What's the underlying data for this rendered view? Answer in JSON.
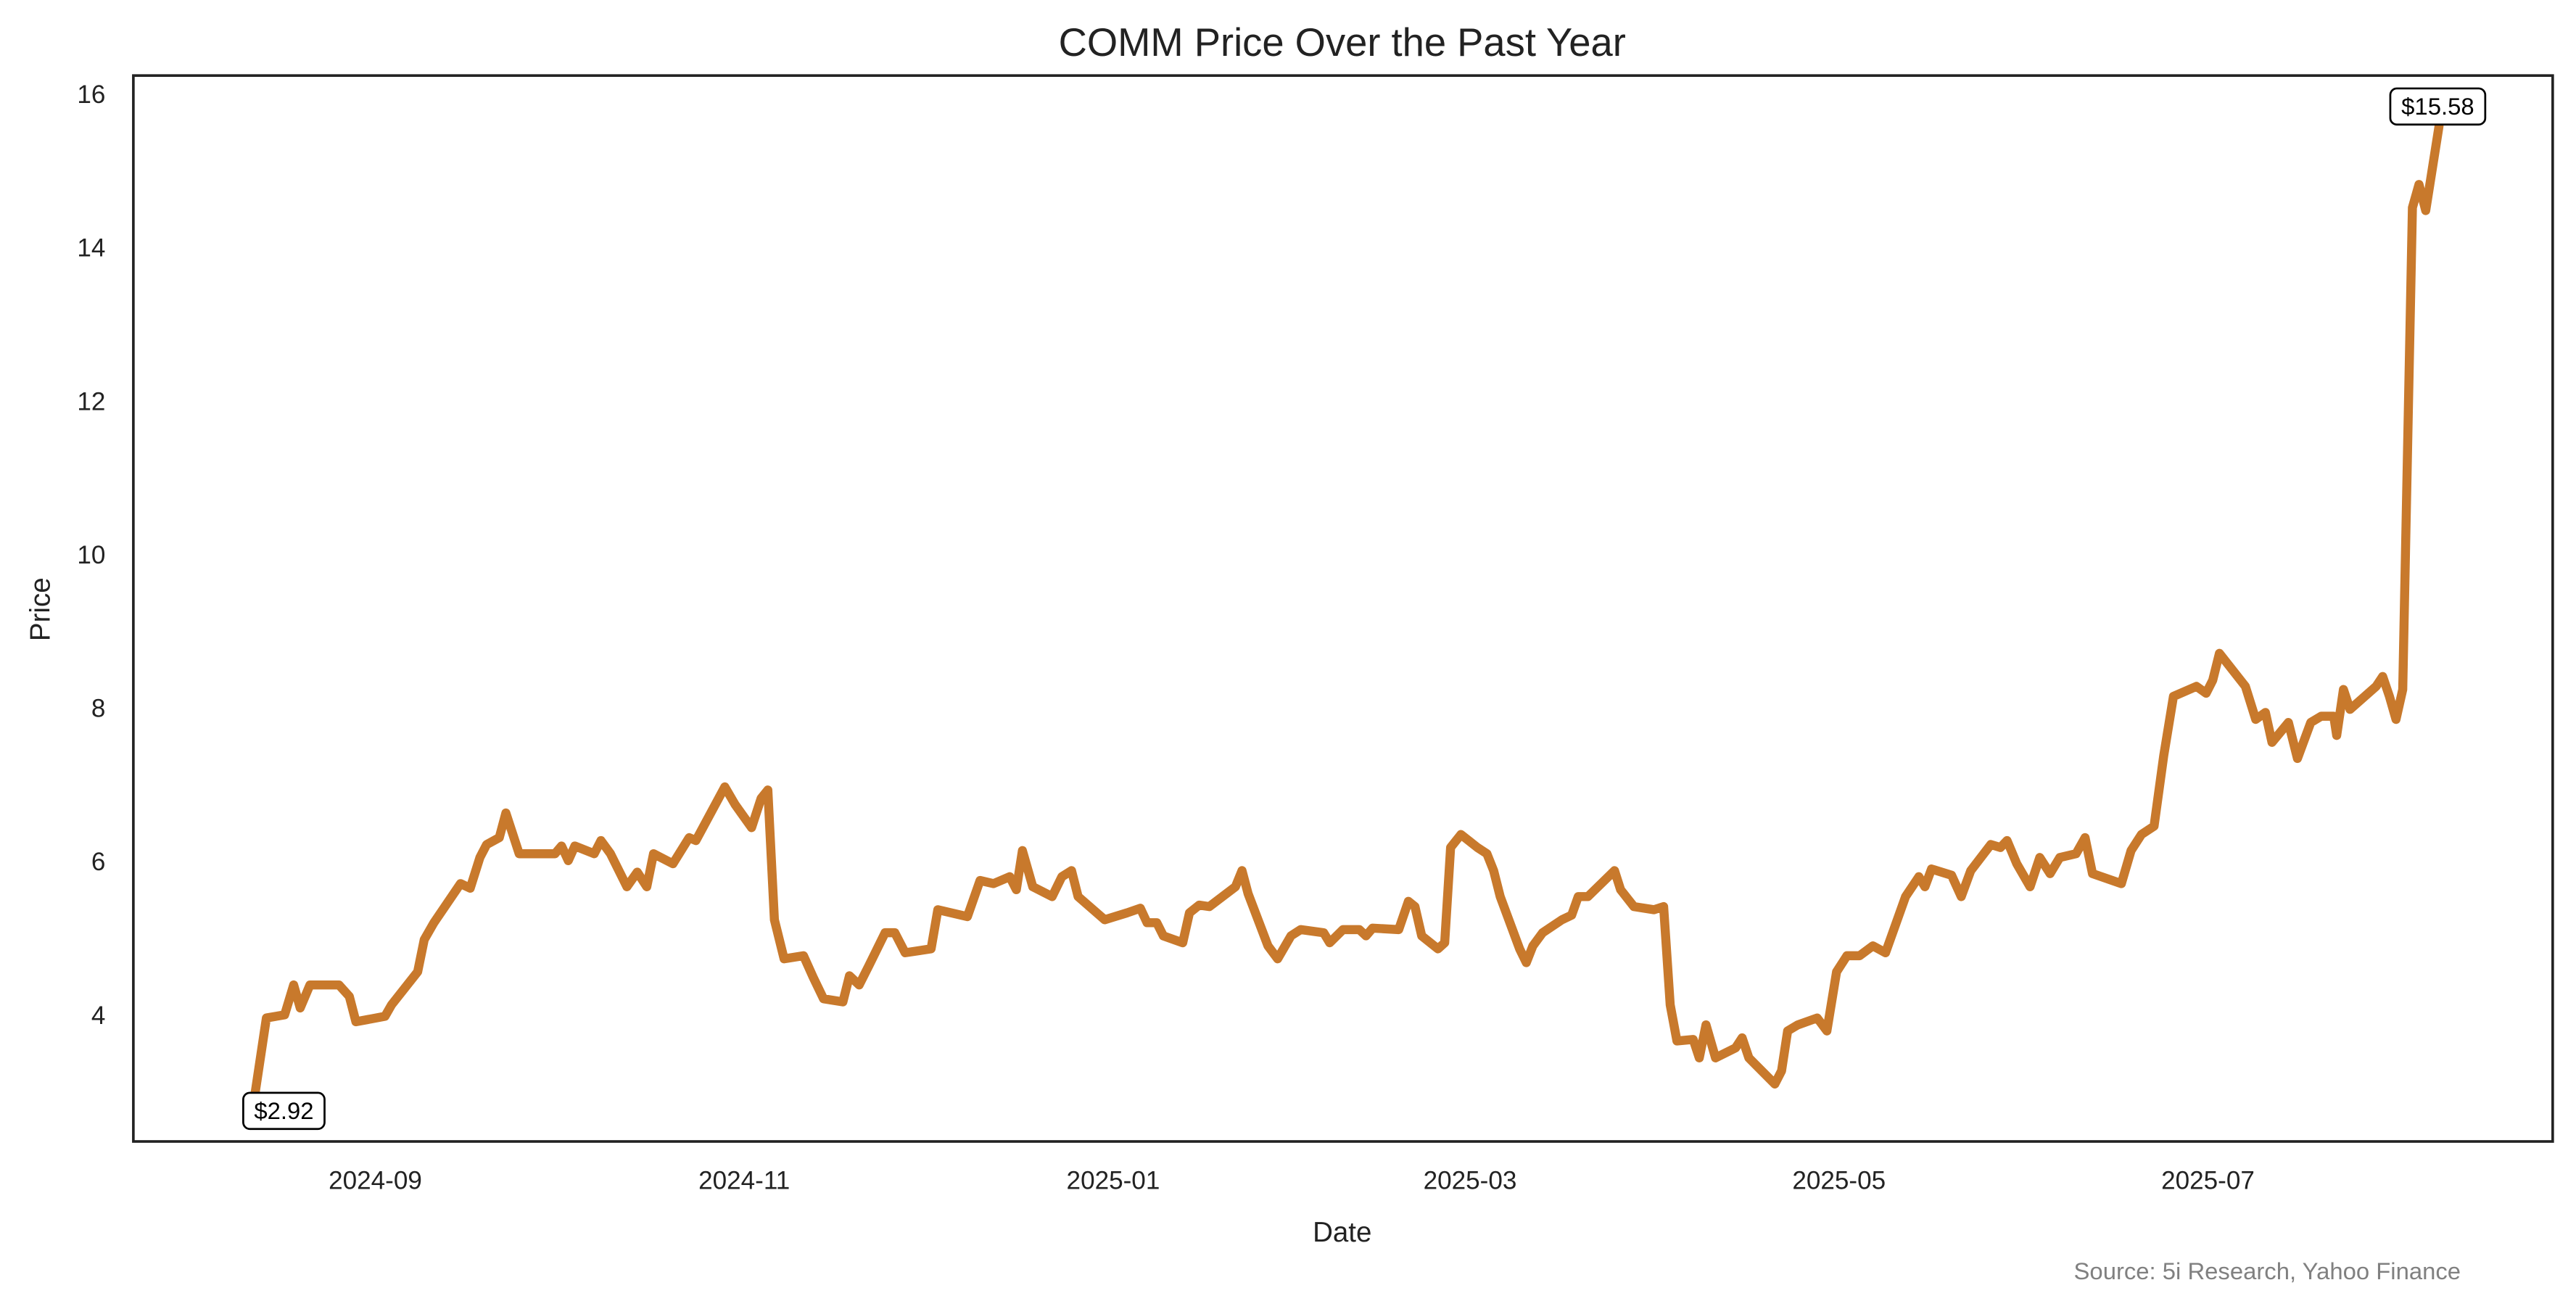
{
  "chart_data": {
    "type": "line",
    "title": "COMM Price Over the Past Year",
    "xlabel": "Date",
    "ylabel": "Price",
    "x_origin_date": "2024-08-12",
    "x_unit": "days since origin",
    "xlim_days": [
      -20,
      380
    ],
    "ylim": [
      2.35,
      16.24
    ],
    "grid": false,
    "line_color": "#C8792C",
    "x_ticks": [
      {
        "label": "2024-09",
        "day": 20
      },
      {
        "label": "2024-11",
        "day": 81
      },
      {
        "label": "2025-01",
        "day": 142
      },
      {
        "label": "2025-03",
        "day": 201
      },
      {
        "label": "2025-05",
        "day": 262
      },
      {
        "label": "2025-07",
        "day": 323
      }
    ],
    "y_ticks": [
      4,
      6,
      8,
      10,
      12,
      14,
      16
    ],
    "annotations": [
      {
        "label": "$2.92",
        "day": 0,
        "price": 2.92
      },
      {
        "label": "$15.58",
        "day": 361,
        "price": 15.58
      }
    ],
    "source": "Source: 5i Research, Yahoo Finance",
    "series": [
      {
        "name": "COMM",
        "points": [
          [
            0,
            2.92
          ],
          [
            2,
            3.96
          ],
          [
            5,
            4.0
          ],
          [
            6.5,
            4.39
          ],
          [
            7.6,
            4.09
          ],
          [
            9.2,
            4.39
          ],
          [
            14,
            4.39
          ],
          [
            15.7,
            4.24
          ],
          [
            16.8,
            3.91
          ],
          [
            21.6,
            3.98
          ],
          [
            22.7,
            4.13
          ],
          [
            27,
            4.56
          ],
          [
            28.1,
            4.98
          ],
          [
            29.7,
            5.2
          ],
          [
            34.1,
            5.71
          ],
          [
            35.7,
            5.65
          ],
          [
            37.3,
            6.05
          ],
          [
            38.4,
            6.22
          ],
          [
            40.5,
            6.31
          ],
          [
            41.6,
            6.63
          ],
          [
            43.8,
            6.1
          ],
          [
            49.7,
            6.1
          ],
          [
            50.8,
            6.2
          ],
          [
            51.9,
            6.01
          ],
          [
            53,
            6.2
          ],
          [
            56.2,
            6.1
          ],
          [
            57.3,
            6.27
          ],
          [
            58.9,
            6.1
          ],
          [
            61.6,
            5.67
          ],
          [
            63.3,
            5.86
          ],
          [
            64.9,
            5.67
          ],
          [
            66,
            6.1
          ],
          [
            69.2,
            5.97
          ],
          [
            71.9,
            6.31
          ],
          [
            73,
            6.27
          ],
          [
            77.8,
            6.97
          ],
          [
            79.5,
            6.74
          ],
          [
            82.2,
            6.44
          ],
          [
            83.8,
            6.82
          ],
          [
            84.9,
            6.93
          ],
          [
            86,
            5.24
          ],
          [
            87.6,
            4.73
          ],
          [
            90.8,
            4.77
          ],
          [
            92.4,
            4.49
          ],
          [
            94.1,
            4.21
          ],
          [
            97.3,
            4.17
          ],
          [
            98.4,
            4.51
          ],
          [
            100,
            4.39
          ],
          [
            101.6,
            4.64
          ],
          [
            104.3,
            5.07
          ],
          [
            105.9,
            5.07
          ],
          [
            107.6,
            4.81
          ],
          [
            111.9,
            4.86
          ],
          [
            113,
            5.37
          ],
          [
            117.9,
            5.28
          ],
          [
            120,
            5.75
          ],
          [
            122.2,
            5.71
          ],
          [
            124.9,
            5.8
          ],
          [
            126,
            5.63
          ],
          [
            127,
            6.14
          ],
          [
            128.7,
            5.67
          ],
          [
            131.9,
            5.54
          ],
          [
            133.5,
            5.8
          ],
          [
            135.1,
            5.88
          ],
          [
            136.2,
            5.54
          ],
          [
            140.6,
            5.24
          ],
          [
            144.3,
            5.33
          ],
          [
            146.5,
            5.39
          ],
          [
            147.6,
            5.2
          ],
          [
            149.2,
            5.2
          ],
          [
            150.3,
            5.03
          ],
          [
            153.5,
            4.94
          ],
          [
            154.6,
            5.33
          ],
          [
            156.2,
            5.43
          ],
          [
            157.9,
            5.41
          ],
          [
            162.2,
            5.67
          ],
          [
            163.3,
            5.88
          ],
          [
            164.3,
            5.58
          ],
          [
            167.6,
            4.9
          ],
          [
            169.2,
            4.73
          ],
          [
            171.4,
            5.03
          ],
          [
            173,
            5.11
          ],
          [
            176.8,
            5.07
          ],
          [
            177.8,
            4.94
          ],
          [
            180,
            5.11
          ],
          [
            182.7,
            5.11
          ],
          [
            183.8,
            5.03
          ],
          [
            184.9,
            5.13
          ],
          [
            189.2,
            5.11
          ],
          [
            190.8,
            5.48
          ],
          [
            191.9,
            5.41
          ],
          [
            193,
            5.03
          ],
          [
            195.7,
            4.86
          ],
          [
            196.8,
            4.94
          ],
          [
            197.8,
            6.18
          ],
          [
            199.5,
            6.35
          ],
          [
            202.2,
            6.18
          ],
          [
            203.8,
            6.1
          ],
          [
            204.9,
            5.88
          ],
          [
            206,
            5.54
          ],
          [
            209.2,
            4.86
          ],
          [
            210.3,
            4.68
          ],
          [
            211.4,
            4.9
          ],
          [
            213,
            5.07
          ],
          [
            216.2,
            5.24
          ],
          [
            217.8,
            5.3
          ],
          [
            218.9,
            5.54
          ],
          [
            220.5,
            5.54
          ],
          [
            224.9,
            5.88
          ],
          [
            225.9,
            5.63
          ],
          [
            228.1,
            5.41
          ],
          [
            231.4,
            5.37
          ],
          [
            233,
            5.41
          ],
          [
            234.1,
            4.13
          ],
          [
            235.2,
            3.66
          ],
          [
            237.9,
            3.68
          ],
          [
            238.9,
            3.44
          ],
          [
            240,
            3.87
          ],
          [
            241.6,
            3.44
          ],
          [
            244.9,
            3.57
          ],
          [
            246,
            3.7
          ],
          [
            247.1,
            3.44
          ],
          [
            251.4,
            3.1
          ],
          [
            252.5,
            3.27
          ],
          [
            253.5,
            3.79
          ],
          [
            255.2,
            3.87
          ],
          [
            258.4,
            3.96
          ],
          [
            260,
            3.79
          ],
          [
            261.6,
            4.56
          ],
          [
            263.3,
            4.77
          ],
          [
            265.4,
            4.77
          ],
          [
            267.6,
            4.9
          ],
          [
            269.7,
            4.81
          ],
          [
            273,
            5.54
          ],
          [
            275.2,
            5.8
          ],
          [
            276.2,
            5.67
          ],
          [
            277.3,
            5.9
          ],
          [
            280.6,
            5.82
          ],
          [
            282.2,
            5.54
          ],
          [
            283.8,
            5.88
          ],
          [
            287.1,
            6.22
          ],
          [
            288.7,
            6.18
          ],
          [
            289.8,
            6.27
          ],
          [
            291.4,
            5.97
          ],
          [
            293.6,
            5.67
          ],
          [
            295.2,
            6.05
          ],
          [
            296.9,
            5.84
          ],
          [
            298.5,
            6.05
          ],
          [
            301.2,
            6.1
          ],
          [
            302.7,
            6.31
          ],
          [
            303.9,
            5.84
          ],
          [
            308.7,
            5.71
          ],
          [
            310.3,
            6.14
          ],
          [
            312,
            6.35
          ],
          [
            314.1,
            6.46
          ],
          [
            315.7,
            7.38
          ],
          [
            317.3,
            8.15
          ],
          [
            321.1,
            8.28
          ],
          [
            322.7,
            8.19
          ],
          [
            323.8,
            8.36
          ],
          [
            324.9,
            8.71
          ],
          [
            329.2,
            8.28
          ],
          [
            330.9,
            7.85
          ],
          [
            332.5,
            7.94
          ],
          [
            333.6,
            7.55
          ],
          [
            336.3,
            7.81
          ],
          [
            337.8,
            7.34
          ],
          [
            340,
            7.81
          ],
          [
            341.7,
            7.89
          ],
          [
            343.8,
            7.89
          ],
          [
            344.3,
            7.64
          ],
          [
            345.4,
            8.24
          ],
          [
            346.5,
            7.98
          ],
          [
            350.8,
            8.28
          ],
          [
            351.9,
            8.41
          ],
          [
            353,
            8.15
          ],
          [
            354.1,
            7.85
          ],
          [
            355.2,
            8.24
          ],
          [
            356.8,
            14.52
          ],
          [
            357.9,
            14.82
          ],
          [
            359,
            14.48
          ],
          [
            361.2,
            15.58
          ]
        ]
      }
    ]
  }
}
